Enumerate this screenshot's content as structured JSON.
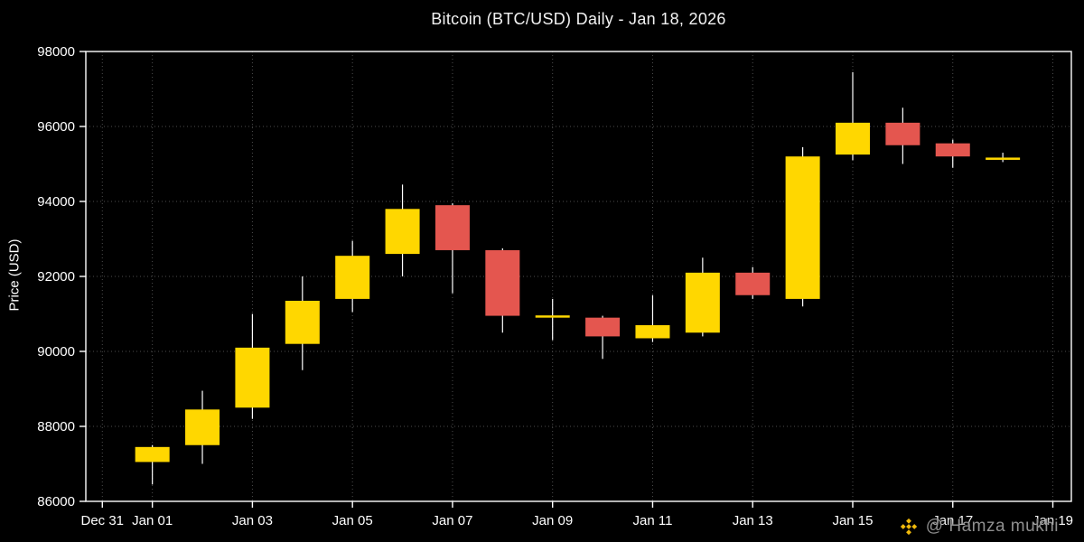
{
  "title": "Bitcoin (BTC/USD) Daily - Jan 18, 2026",
  "ylabel": "Price (USD)",
  "watermark": {
    "handle": "@ Hamza mukhi",
    "icon": "binance-diamond-icon",
    "icon_color": "#f0b90b",
    "text_color": "#8f8f8f"
  },
  "chart_data": {
    "type": "candlestick",
    "title": "Bitcoin (BTC/USD) Daily - Jan 18, 2026",
    "ylabel": "Price (USD)",
    "ylim": [
      86000,
      98000
    ],
    "y_ticks": [
      86000,
      88000,
      90000,
      92000,
      94000,
      96000,
      98000
    ],
    "x_domain": [
      -0.33,
      19.37
    ],
    "x_ticks": [
      {
        "label": "Dec 31",
        "day": 0
      },
      {
        "label": "Jan 01",
        "day": 1
      },
      {
        "label": "Jan 03",
        "day": 3
      },
      {
        "label": "Jan 05",
        "day": 5
      },
      {
        "label": "Jan 07",
        "day": 7
      },
      {
        "label": "Jan 09",
        "day": 9
      },
      {
        "label": "Jan 11",
        "day": 11
      },
      {
        "label": "Jan 13",
        "day": 13
      },
      {
        "label": "Jan 15",
        "day": 15
      },
      {
        "label": "Jan 17",
        "day": 17
      },
      {
        "label": "Jan 19",
        "day": 19
      }
    ],
    "grid": true,
    "up_color": "#ffd700",
    "down_color": "#e4564f",
    "wick_color": "#ffffff",
    "grid_color": "#4d4d4d",
    "axis_color": "#ffffff",
    "candles": [
      {
        "date": "Jan 01",
        "day": 1,
        "open": 87050,
        "high": 87500,
        "low": 86450,
        "close": 87450
      },
      {
        "date": "Jan 02",
        "day": 2,
        "open": 87500,
        "high": 88950,
        "low": 87000,
        "close": 88450
      },
      {
        "date": "Jan 03",
        "day": 3,
        "open": 88500,
        "high": 91000,
        "low": 88200,
        "close": 90100
      },
      {
        "date": "Jan 04",
        "day": 4,
        "open": 90200,
        "high": 92000,
        "low": 89500,
        "close": 91350
      },
      {
        "date": "Jan 05",
        "day": 5,
        "open": 91400,
        "high": 92950,
        "low": 91050,
        "close": 92550
      },
      {
        "date": "Jan 06",
        "day": 6,
        "open": 92600,
        "high": 94450,
        "low": 92000,
        "close": 93800
      },
      {
        "date": "Jan 07",
        "day": 7,
        "open": 93900,
        "high": 93950,
        "low": 91550,
        "close": 92700
      },
      {
        "date": "Jan 08",
        "day": 8,
        "open": 92700,
        "high": 92750,
        "low": 90500,
        "close": 90950
      },
      {
        "date": "Jan 09",
        "day": 9,
        "open": 90900,
        "high": 91400,
        "low": 90300,
        "close": 90960
      },
      {
        "date": "Jan 10",
        "day": 10,
        "open": 90900,
        "high": 90950,
        "low": 89800,
        "close": 90400
      },
      {
        "date": "Jan 11",
        "day": 11,
        "open": 90350,
        "high": 91500,
        "low": 90250,
        "close": 90700
      },
      {
        "date": "Jan 12",
        "day": 12,
        "open": 90500,
        "high": 92500,
        "low": 90400,
        "close": 92100
      },
      {
        "date": "Jan 13",
        "day": 13,
        "open": 92100,
        "high": 92250,
        "low": 91400,
        "close": 91500
      },
      {
        "date": "Jan 14",
        "day": 14,
        "open": 91400,
        "high": 95450,
        "low": 91200,
        "close": 95200
      },
      {
        "date": "Jan 15",
        "day": 15,
        "open": 95250,
        "high": 97450,
        "low": 95100,
        "close": 96100
      },
      {
        "date": "Jan 16",
        "day": 16,
        "open": 96100,
        "high": 96500,
        "low": 95000,
        "close": 95500
      },
      {
        "date": "Jan 17",
        "day": 17,
        "open": 95550,
        "high": 95650,
        "low": 94900,
        "close": 95200
      },
      {
        "date": "Jan 18",
        "day": 18,
        "open": 95150,
        "high": 95300,
        "low": 95050,
        "close": 95170
      }
    ]
  }
}
